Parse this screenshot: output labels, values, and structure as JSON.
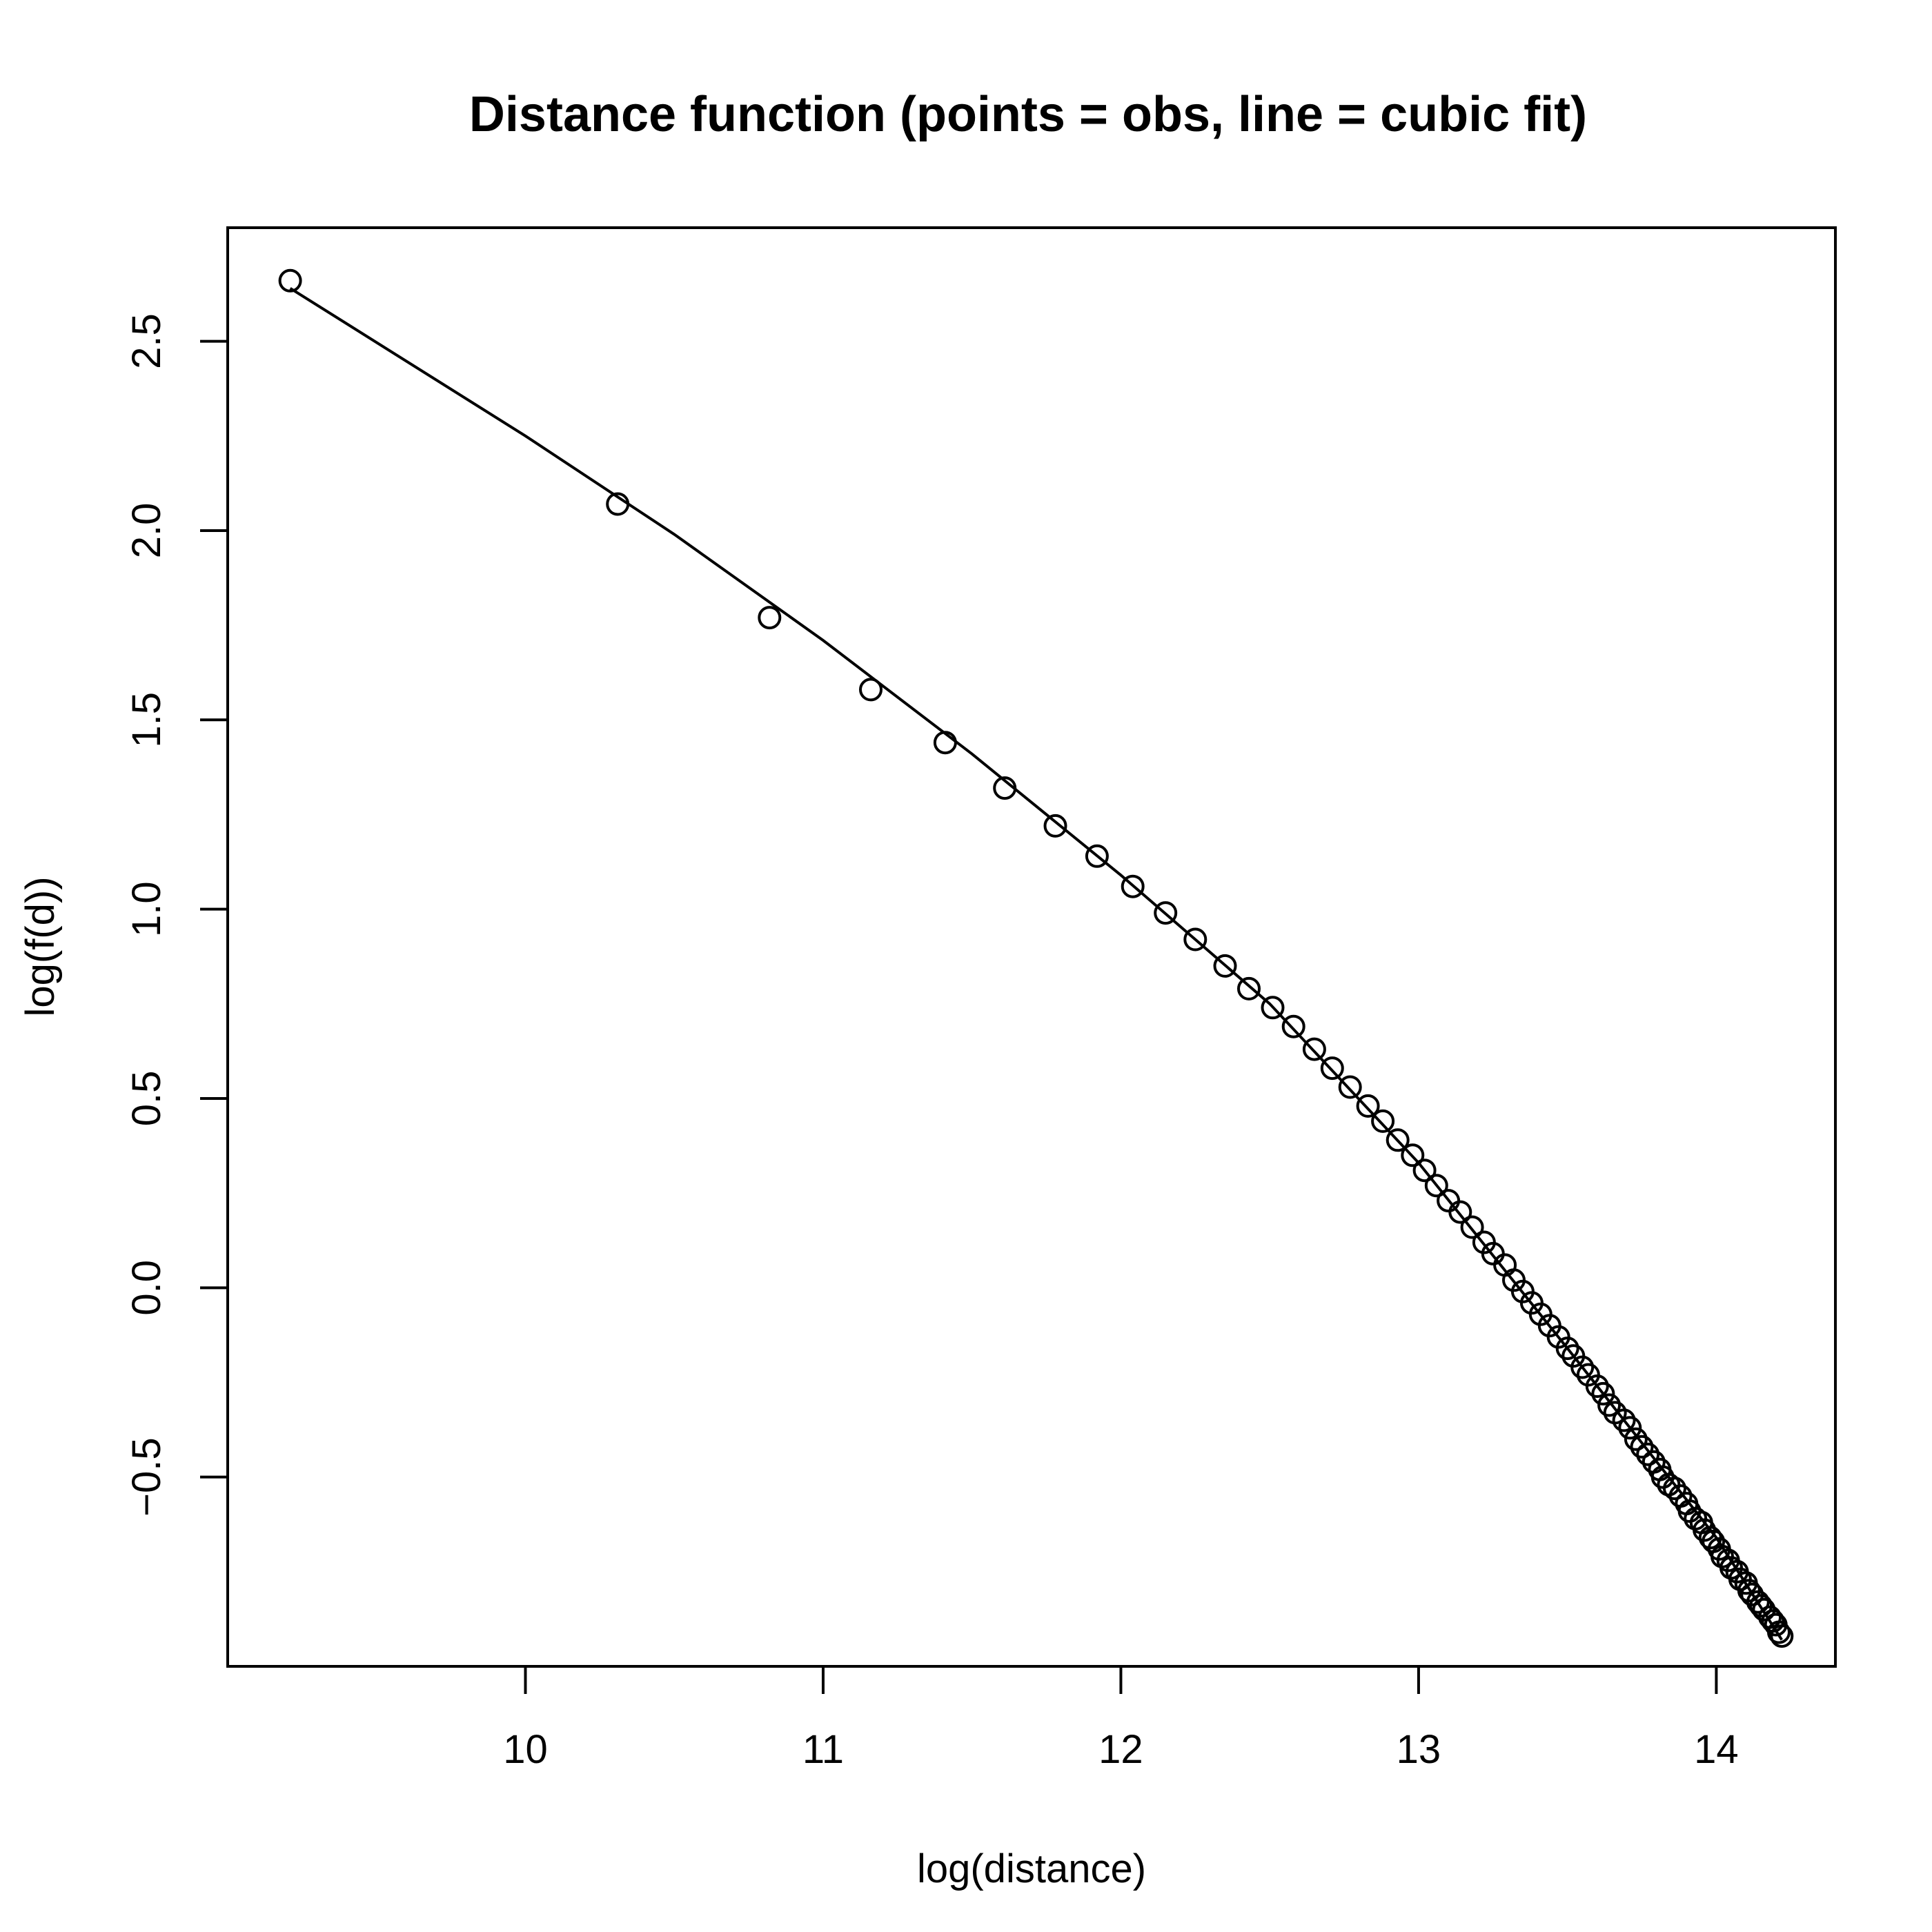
{
  "chart_data": {
    "type": "scatter",
    "title": "Distance function (points = obs, line = cubic fit)",
    "xlabel": "log(distance)",
    "ylabel": "log(f(d))",
    "xlim": [
      9.0,
      14.4
    ],
    "ylim": [
      -1.0,
      2.8
    ],
    "xticks": [
      10,
      11,
      12,
      13,
      14
    ],
    "xtick_labels": [
      "10",
      "11",
      "12",
      "13",
      "14"
    ],
    "yticks": [
      -0.5,
      0.0,
      0.5,
      1.0,
      1.5,
      2.0,
      2.5
    ],
    "ytick_labels": [
      "−0.5",
      "0.0",
      "0.5",
      "1.0",
      "1.5",
      "2.0",
      "2.5"
    ],
    "grid": false,
    "legend": "none",
    "series": [
      {
        "type": "scatter",
        "marker": "open-circle",
        "x": [
          9.21,
          10.31,
          10.82,
          11.16,
          11.41,
          11.61,
          11.78,
          11.92,
          12.04,
          12.15,
          12.25,
          12.35,
          12.43,
          12.51,
          12.58,
          12.65,
          12.71,
          12.77,
          12.83,
          12.88,
          12.93,
          12.98,
          13.02,
          13.06,
          13.1,
          13.14,
          13.18,
          13.22,
          13.25,
          13.29,
          13.32,
          13.35,
          13.38,
          13.41,
          13.44,
          13.47,
          13.5,
          13.52,
          13.55,
          13.57,
          13.6,
          13.62,
          13.64,
          13.66,
          13.69,
          13.71,
          13.73,
          13.75,
          13.77,
          13.79,
          13.81,
          13.82,
          13.84,
          13.86,
          13.88,
          13.9,
          13.91,
          13.93,
          13.95,
          13.96,
          13.98,
          13.99,
          14.01,
          14.02,
          14.04,
          14.05,
          14.07,
          14.08,
          14.1,
          14.11,
          14.12,
          14.14,
          14.15,
          14.16,
          14.18,
          14.19,
          14.2,
          14.21,
          14.22
        ],
        "y": [
          2.66,
          2.07,
          1.77,
          1.58,
          1.44,
          1.32,
          1.22,
          1.14,
          1.06,
          0.99,
          0.92,
          0.85,
          0.79,
          0.74,
          0.69,
          0.63,
          0.58,
          0.53,
          0.48,
          0.44,
          0.39,
          0.35,
          0.31,
          0.27,
          0.23,
          0.2,
          0.16,
          0.12,
          0.09,
          0.06,
          0.02,
          -0.01,
          -0.04,
          -0.07,
          -0.1,
          -0.13,
          -0.16,
          -0.18,
          -0.21,
          -0.23,
          -0.26,
          -0.28,
          -0.31,
          -0.33,
          -0.35,
          -0.37,
          -0.4,
          -0.42,
          -0.44,
          -0.46,
          -0.48,
          -0.5,
          -0.52,
          -0.53,
          -0.55,
          -0.57,
          -0.59,
          -0.61,
          -0.62,
          -0.64,
          -0.66,
          -0.67,
          -0.69,
          -0.71,
          -0.72,
          -0.74,
          -0.75,
          -0.77,
          -0.78,
          -0.8,
          -0.81,
          -0.83,
          -0.84,
          -0.85,
          -0.87,
          -0.88,
          -0.89,
          -0.91,
          -0.92
        ]
      },
      {
        "type": "line",
        "x": [
          9.21,
          10.0,
          10.5,
          11.0,
          11.5,
          12.0,
          12.5,
          13.0,
          13.5,
          14.0,
          14.22
        ],
        "y": [
          2.64,
          2.25,
          1.99,
          1.71,
          1.41,
          1.09,
          0.75,
          0.33,
          -0.16,
          -0.66,
          -0.93
        ]
      }
    ]
  }
}
